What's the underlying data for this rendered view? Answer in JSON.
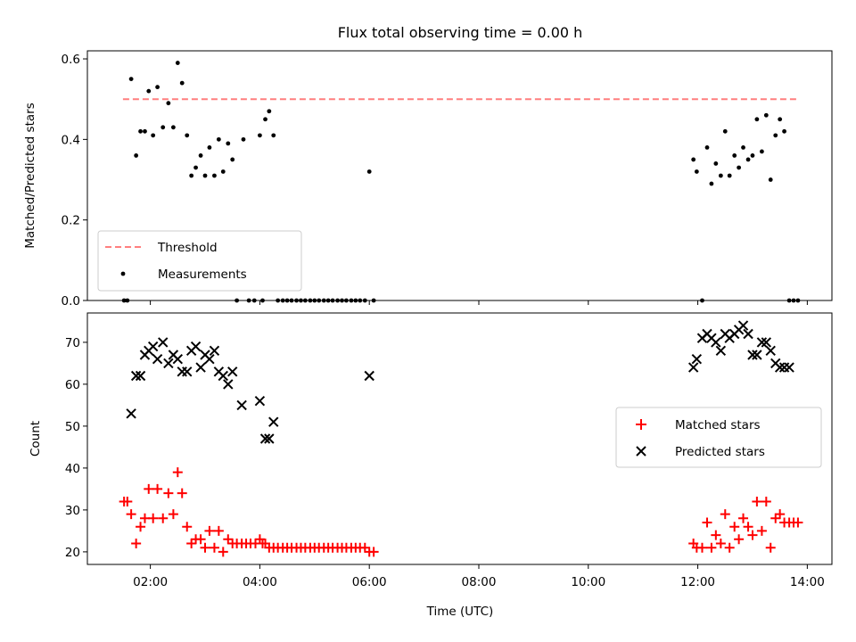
{
  "chart_data": [
    {
      "type": "scatter",
      "title": "Flux total observing time = 0.00 h",
      "xlabel": "",
      "ylabel": "Matched/Predicted stars",
      "xlim": [
        0.85,
        14.45
      ],
      "ylim": [
        0,
        0.62
      ],
      "yticks": [
        0.0,
        0.2,
        0.4,
        0.6
      ],
      "yticklabels": [
        "0.0",
        "0.2",
        "0.4",
        "0.6"
      ],
      "xticks": [
        2,
        4,
        6,
        8,
        10,
        12,
        14
      ],
      "grid": false,
      "legend_position": "lower-left",
      "threshold": {
        "name": "Threshold",
        "value": 0.5,
        "x_range": [
          1.5,
          13.85
        ],
        "color": "#ff7f7f"
      },
      "series": [
        {
          "name": "Measurements",
          "color": "#000000",
          "x": [
            1.52,
            1.58,
            1.65,
            1.74,
            1.82,
            1.9,
            1.97,
            2.05,
            2.13,
            2.23,
            2.33,
            2.42,
            2.5,
            2.58,
            2.67,
            2.75,
            2.83,
            2.92,
            3.0,
            3.08,
            3.17,
            3.25,
            3.33,
            3.42,
            3.5,
            3.58,
            3.7,
            3.8,
            3.9,
            4.0,
            4.05,
            4.1,
            4.17,
            4.25,
            4.33,
            4.42,
            4.5,
            4.58,
            4.67,
            4.75,
            4.83,
            4.92,
            5.0,
            5.08,
            5.17,
            5.25,
            5.33,
            5.42,
            5.5,
            5.58,
            5.67,
            5.75,
            5.83,
            5.92,
            6.0,
            6.08,
            11.92,
            11.98,
            12.08,
            12.17,
            12.25,
            12.33,
            12.42,
            12.5,
            12.58,
            12.67,
            12.75,
            12.83,
            12.92,
            13.0,
            13.08,
            13.17,
            13.25,
            13.33,
            13.42,
            13.5,
            13.58,
            13.67,
            13.75,
            13.83
          ],
          "values": [
            0.0,
            0.0,
            0.55,
            0.36,
            0.42,
            0.42,
            0.52,
            0.41,
            0.53,
            0.43,
            0.49,
            0.43,
            0.59,
            0.54,
            0.41,
            0.31,
            0.33,
            0.36,
            0.31,
            0.38,
            0.31,
            0.4,
            0.32,
            0.39,
            0.35,
            0.0,
            0.4,
            0.0,
            0.0,
            0.41,
            0.0,
            0.45,
            0.47,
            0.41,
            0.0,
            0.0,
            0.0,
            0.0,
            0.0,
            0.0,
            0.0,
            0.0,
            0.0,
            0.0,
            0.0,
            0.0,
            0.0,
            0.0,
            0.0,
            0.0,
            0.0,
            0.0,
            0.0,
            0.0,
            0.32,
            0.0,
            0.35,
            0.32,
            0.0,
            0.38,
            0.29,
            0.34,
            0.31,
            0.42,
            0.31,
            0.36,
            0.33,
            0.38,
            0.35,
            0.36,
            0.45,
            0.37,
            0.46,
            0.3,
            0.41,
            0.45,
            0.42,
            0.0,
            0.0,
            0.0
          ]
        }
      ]
    },
    {
      "type": "scatter",
      "title": "",
      "xlabel": "Time (UTC)",
      "ylabel": "Count",
      "xlim": [
        0.85,
        14.45
      ],
      "ylim": [
        17,
        77
      ],
      "yticks": [
        20,
        30,
        40,
        50,
        60,
        70
      ],
      "yticklabels": [
        "20",
        "30",
        "40",
        "50",
        "60",
        "70"
      ],
      "xticks": [
        2,
        4,
        6,
        8,
        10,
        12,
        14
      ],
      "xticklabels": [
        "02:00",
        "04:00",
        "06:00",
        "08:00",
        "10:00",
        "12:00",
        "14:00"
      ],
      "grid": false,
      "legend_position": "center-right",
      "series": [
        {
          "name": "Matched stars",
          "marker": "+",
          "color": "#ff0000",
          "x": [
            1.52,
            1.58,
            1.65,
            1.74,
            1.82,
            1.9,
            1.97,
            2.05,
            2.13,
            2.23,
            2.33,
            2.42,
            2.5,
            2.58,
            2.67,
            2.75,
            2.83,
            2.92,
            3.0,
            3.08,
            3.17,
            3.25,
            3.33,
            3.42,
            3.5,
            3.58,
            3.67,
            3.75,
            3.83,
            3.92,
            4.0,
            4.05,
            4.1,
            4.17,
            4.25,
            4.33,
            4.42,
            4.5,
            4.58,
            4.67,
            4.75,
            4.83,
            4.92,
            5.0,
            5.08,
            5.17,
            5.25,
            5.33,
            5.42,
            5.5,
            5.58,
            5.67,
            5.75,
            5.83,
            5.92,
            6.0,
            6.08,
            11.92,
            11.98,
            12.08,
            12.17,
            12.25,
            12.33,
            12.42,
            12.5,
            12.58,
            12.67,
            12.75,
            12.83,
            12.92,
            13.0,
            13.08,
            13.17,
            13.25,
            13.33,
            13.42,
            13.5,
            13.58,
            13.67,
            13.75,
            13.83
          ],
          "values": [
            32,
            32,
            29,
            22,
            26,
            28,
            35,
            28,
            35,
            28,
            34,
            29,
            39,
            34,
            26,
            22,
            23,
            23,
            21,
            25,
            21,
            25,
            20,
            23,
            22,
            22,
            22,
            22,
            22,
            22,
            23,
            22,
            22,
            21,
            21,
            21,
            21,
            21,
            21,
            21,
            21,
            21,
            21,
            21,
            21,
            21,
            21,
            21,
            21,
            21,
            21,
            21,
            21,
            21,
            21,
            20,
            20,
            22,
            21,
            21,
            27,
            21,
            24,
            22,
            29,
            21,
            26,
            23,
            28,
            26,
            24,
            32,
            25,
            32,
            21,
            28,
            29,
            27,
            27,
            27,
            27
          ]
        },
        {
          "name": "Predicted stars",
          "marker": "x",
          "color": "#000000",
          "x": [
            1.65,
            1.74,
            1.82,
            1.9,
            1.97,
            2.05,
            2.13,
            2.23,
            2.33,
            2.42,
            2.5,
            2.58,
            2.67,
            2.75,
            2.83,
            2.92,
            3.0,
            3.08,
            3.17,
            3.25,
            3.33,
            3.42,
            3.5,
            3.67,
            4.0,
            4.1,
            4.17,
            4.25,
            6.0,
            11.92,
            11.98,
            12.08,
            12.17,
            12.25,
            12.33,
            12.42,
            12.5,
            12.58,
            12.67,
            12.75,
            12.83,
            12.92,
            13.0,
            13.08,
            13.17,
            13.25,
            13.33,
            13.42,
            13.5,
            13.58,
            13.67
          ],
          "values": [
            53,
            62,
            62,
            67,
            68,
            69,
            66,
            70,
            65,
            67,
            66,
            63,
            63,
            68,
            69,
            64,
            67,
            66,
            68,
            63,
            62,
            60,
            63,
            55,
            56,
            47,
            47,
            51,
            62,
            64,
            66,
            71,
            72,
            71,
            70,
            68,
            72,
            71,
            72,
            73,
            74,
            72,
            67,
            67,
            70,
            70,
            68,
            65,
            64,
            64,
            64
          ]
        }
      ]
    }
  ]
}
